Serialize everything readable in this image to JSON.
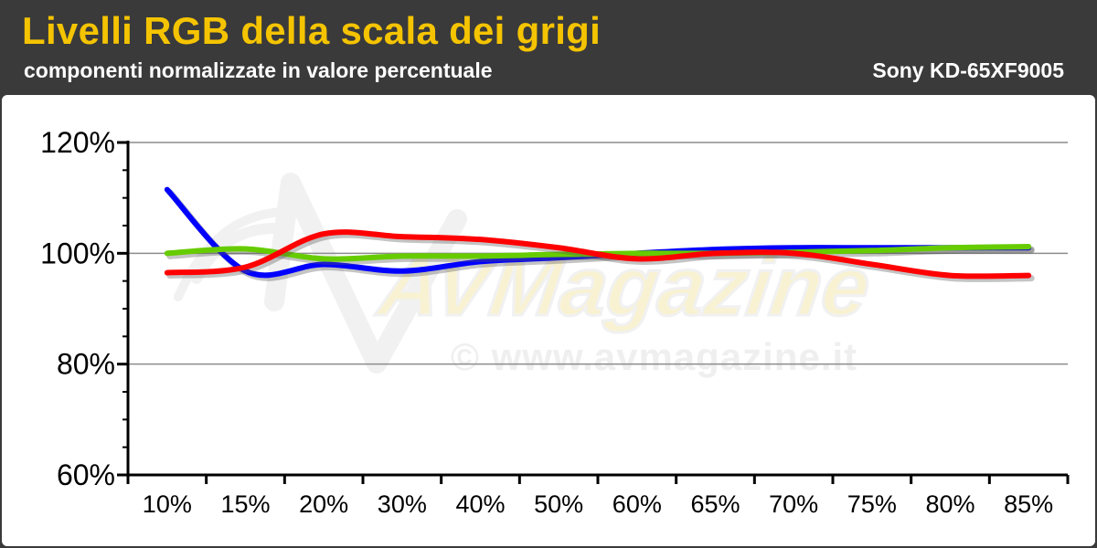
{
  "header": {
    "title": "Livelli RGB della scala dei grigi",
    "subtitle": "componenti normalizzate in valore percentuale",
    "model": "Sony KD-65XF9005"
  },
  "watermark": {
    "brand": "AVMagazine",
    "site": "© www.avmagazine.it"
  },
  "colors": {
    "background": "#3a3a3a",
    "title": "#f5c400",
    "red": "#ff0000",
    "green": "#66cc00",
    "blue": "#0000ff"
  },
  "chart_data": {
    "type": "line",
    "categories": [
      "10%",
      "15%",
      "20%",
      "30%",
      "40%",
      "50%",
      "60%",
      "65%",
      "70%",
      "75%",
      "80%",
      "85%"
    ],
    "ylim": [
      60,
      120
    ],
    "yticks": [
      60,
      80,
      100,
      120
    ],
    "ytick_labels": [
      "60%",
      "80%",
      "100%",
      "120%"
    ],
    "grid": true,
    "series": [
      {
        "color": "blue",
        "values": [
          111.5,
          96.8,
          98.0,
          96.8,
          98.5,
          99.2,
          100.0,
          100.7,
          101.0,
          101.0,
          101.0,
          101.0
        ]
      },
      {
        "color": "green",
        "values": [
          100.0,
          100.8,
          99.0,
          99.5,
          99.5,
          99.8,
          100.0,
          100.0,
          100.2,
          100.5,
          101.0,
          101.2
        ]
      },
      {
        "color": "red",
        "values": [
          96.5,
          97.5,
          103.5,
          103.0,
          102.5,
          101.0,
          99.0,
          100.0,
          100.0,
          98.0,
          96.0,
          96.0
        ]
      }
    ]
  }
}
